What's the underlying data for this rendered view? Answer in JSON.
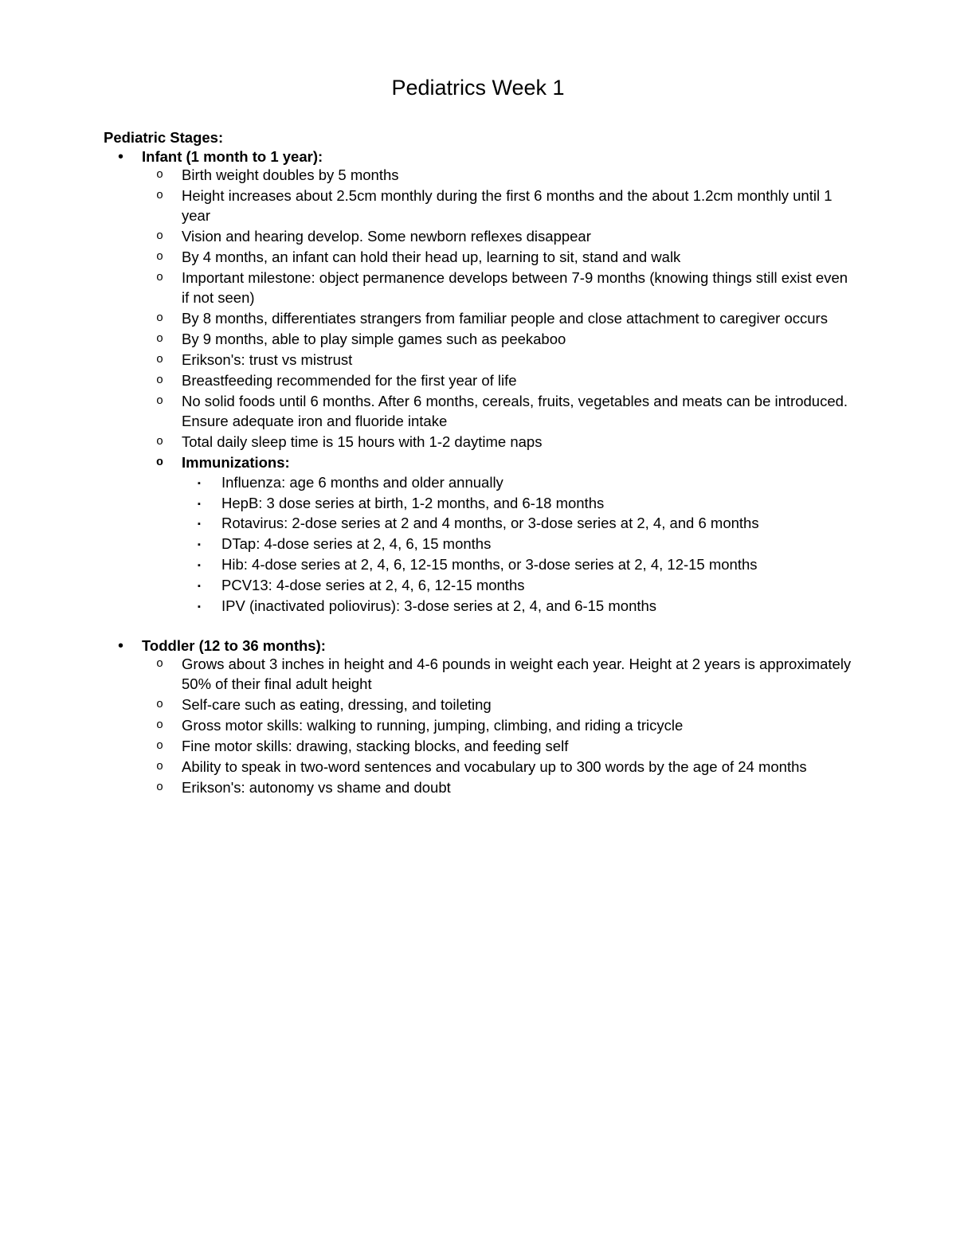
{
  "title": "Pediatrics Week 1",
  "section_heading": "Pediatric Stages:",
  "stages": {
    "infant": {
      "heading": "Infant (1 month to 1 year):",
      "items": [
        "Birth weight doubles by 5 months",
        "Height increases about 2.5cm monthly during the first 6 months and the about 1.2cm monthly until 1 year",
        "Vision and hearing develop. Some newborn reflexes disappear",
        "By 4 months, an infant can hold their head up, learning to sit, stand and walk",
        "Important milestone: object permanence develops between 7-9 months (knowing things still exist even if not seen)",
        "By 8 months, differentiates strangers from familiar people and close attachment to caregiver occurs",
        "By 9 months, able to play simple games such as peekaboo",
        "Erikson's: trust vs mistrust",
        "Breastfeeding recommended for the first year of life",
        "No solid foods until 6 months. After 6 months, cereals, fruits, vegetables and meats can be introduced. Ensure adequate iron and fluoride intake",
        "Total daily sleep time is 15 hours with 1-2 daytime naps"
      ],
      "immunizations_label": "Immunizations:",
      "immunizations": [
        "Influenza: age 6 months and older annually",
        "HepB: 3 dose series at birth, 1-2 months, and 6-18 months",
        "Rotavirus: 2-dose series at 2 and 4 months, or 3-dose series at 2, 4, and 6 months",
        "DTap: 4-dose series at 2, 4, 6, 15 months",
        "Hib: 4-dose series at 2, 4, 6, 12-15 months, or 3-dose series at 2, 4, 12-15 months",
        "PCV13: 4-dose series at 2, 4, 6, 12-15 months",
        "IPV (inactivated poliovirus): 3-dose series at 2, 4, and 6-15 months"
      ]
    },
    "toddler": {
      "heading": "Toddler (12 to 36 months):",
      "items": [
        "Grows about 3 inches in height and 4-6 pounds in weight each year. Height at 2 years is approximately 50% of their final adult height",
        "Self-care such as eating, dressing, and toileting",
        "Gross motor skills: walking to running, jumping, climbing, and riding a tricycle",
        "Fine motor skills: drawing, stacking blocks, and feeding self",
        "Ability to speak in two-word sentences and vocabulary up to 300 words by the age of 24 months",
        "Erikson's: autonomy vs shame and doubt"
      ]
    }
  }
}
